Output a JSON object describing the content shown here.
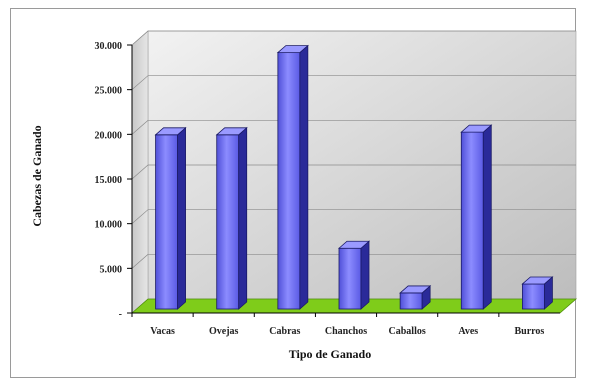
{
  "chart_data": {
    "type": "bar",
    "categories": [
      "Vacas",
      "Ovejas",
      "Cabras",
      "Chanchos",
      "Caballos",
      "Aves",
      "Burros"
    ],
    "values": [
      19500,
      19500,
      28700,
      6800,
      1800,
      19800,
      2800
    ],
    "xlabel": "Tipo de Ganado",
    "ylabel": "Cabezas de Ganado",
    "ylim": [
      0,
      30000
    ],
    "yticks": [
      {
        "value": 0,
        "label": "-"
      },
      {
        "value": 5000,
        "label": "5.000"
      },
      {
        "value": 10000,
        "label": "10.000"
      },
      {
        "value": 15000,
        "label": "15.000"
      },
      {
        "value": 20000,
        "label": "20.000"
      },
      {
        "value": 25000,
        "label": "25.000"
      },
      {
        "value": 30000,
        "label": "30.000"
      }
    ],
    "grid": true,
    "legend": "none",
    "colors": {
      "bar_front": "#6666ee",
      "bar_side": "#2a2a99",
      "bar_top": "#9a9aff",
      "floor": "#7fcc1a",
      "wall_light": "#f2f2f2",
      "wall_dark": "#bdbdbd"
    }
  }
}
